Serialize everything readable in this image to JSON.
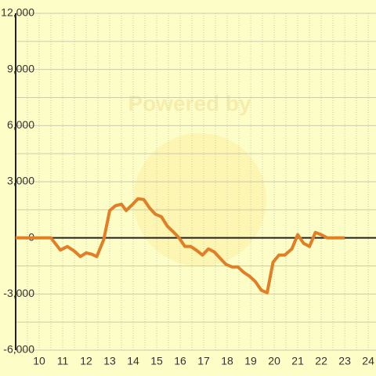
{
  "chart_data": {
    "type": "line",
    "watermark": "Powered by",
    "x": [
      9,
      10.5,
      10.9,
      11.2,
      11.5,
      11.75,
      12,
      12.25,
      12.45,
      12.75,
      13,
      13.25,
      13.5,
      13.7,
      13.95,
      14.2,
      14.45,
      14.7,
      14.95,
      15.2,
      15.45,
      15.7,
      15.95,
      16.2,
      16.45,
      16.7,
      16.95,
      17.2,
      17.45,
      17.7,
      17.95,
      18.2,
      18.45,
      18.7,
      18.95,
      19.2,
      19.45,
      19.7,
      19.95,
      20.2,
      20.45,
      20.75,
      21,
      21.25,
      21.5,
      21.75,
      22,
      22.25,
      23
    ],
    "series": [
      {
        "color": "#e07f26",
        "values": [
          0,
          0,
          -650,
          -460,
          -710,
          -1000,
          -800,
          -880,
          -1000,
          -80,
          1460,
          1720,
          1800,
          1460,
          1760,
          2090,
          2050,
          1590,
          1260,
          1130,
          630,
          330,
          0,
          -460,
          -460,
          -670,
          -920,
          -590,
          -750,
          -1090,
          -1420,
          -1550,
          -1550,
          -1840,
          -2050,
          -2340,
          -2800,
          -2930,
          -1300,
          -920,
          -920,
          -590,
          170,
          -290,
          -460,
          290,
          170,
          0,
          0
        ]
      }
    ],
    "xlim": [
      9,
      24.33
    ],
    "xticks": [
      10,
      11,
      12,
      13,
      14,
      15,
      16,
      17,
      18,
      19,
      20,
      21,
      22,
      23,
      24
    ],
    "ylim": [
      -6000,
      12000
    ],
    "yticks": [
      {
        "value": -6000,
        "label": "-6,000"
      },
      {
        "value": -3000,
        "label": "-3,000"
      },
      0,
      {
        "value": 3000,
        "label": "3,000"
      },
      {
        "value": 6000,
        "label": "6,000"
      },
      {
        "value": 9000,
        "label": "9,000"
      },
      {
        "value": 12000,
        "label": "12,000"
      }
    ],
    "grid": true
  }
}
